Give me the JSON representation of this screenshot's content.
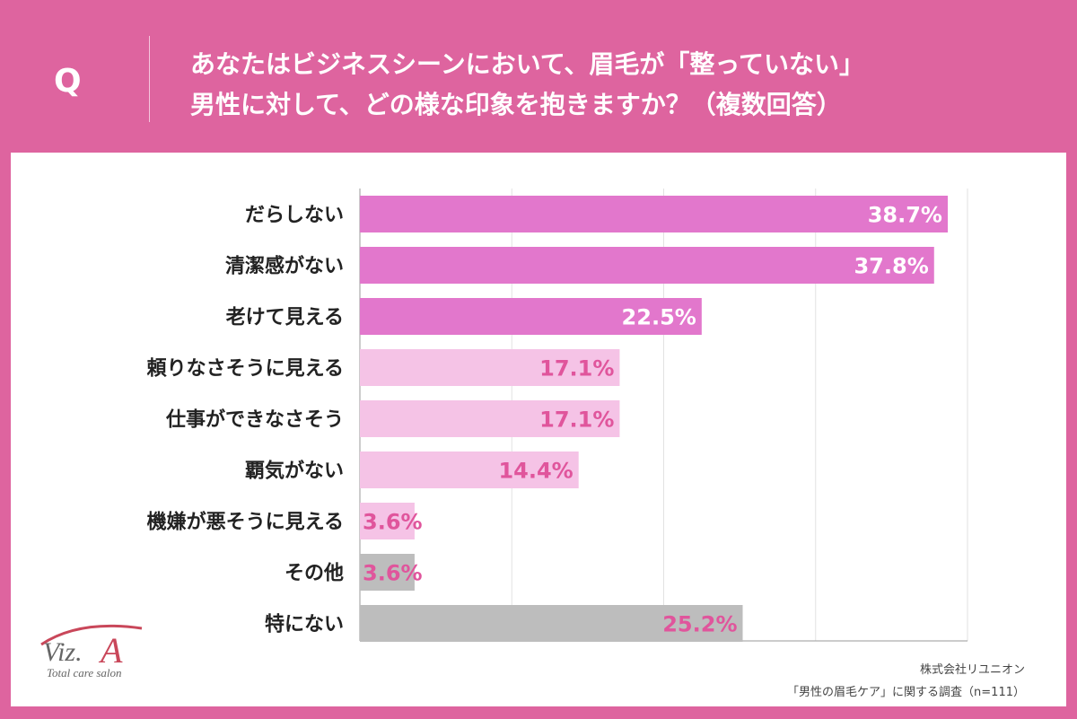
{
  "header": {
    "q_label": "Q",
    "title_line1": "あなたはビジネスシーンにおいて、眉毛が「整っていない」",
    "title_line2": "男性に対して、どの様な印象を抱きますか？（複数回答）"
  },
  "colors": {
    "background": "#de649f",
    "bar_dark": "#e277cc",
    "bar_light": "#f5c3e6",
    "bar_gray": "#bdbdbd",
    "label_light": "#e0559c",
    "label_dark": "#ffffff"
  },
  "chart_data": {
    "type": "bar",
    "orientation": "horizontal",
    "categories": [
      "だらしない",
      "清潔感がない",
      "老けて見える",
      "頼りなさそうに見える",
      "仕事ができなさそう",
      "覇気がない",
      "機嫌が悪そうに見える",
      "その他",
      "特にない"
    ],
    "values": [
      38.7,
      37.8,
      22.5,
      17.1,
      17.1,
      14.4,
      3.6,
      3.6,
      25.2
    ],
    "value_labels": [
      "38.7%",
      "37.8%",
      "22.5%",
      "17.1%",
      "17.1%",
      "14.4%",
      "3.6%",
      "3.6%",
      "25.2%"
    ],
    "color_groups": [
      "dark",
      "dark",
      "dark",
      "light",
      "light",
      "light",
      "light",
      "gray",
      "gray"
    ],
    "xlim": [
      0,
      40
    ],
    "grid": true
  },
  "logo": {
    "brand": "Viz.A",
    "tagline": "Total care salon"
  },
  "source": {
    "company": "株式会社リユニオン",
    "survey": "「男性の眉毛ケア」に関する調査（n=111）"
  }
}
